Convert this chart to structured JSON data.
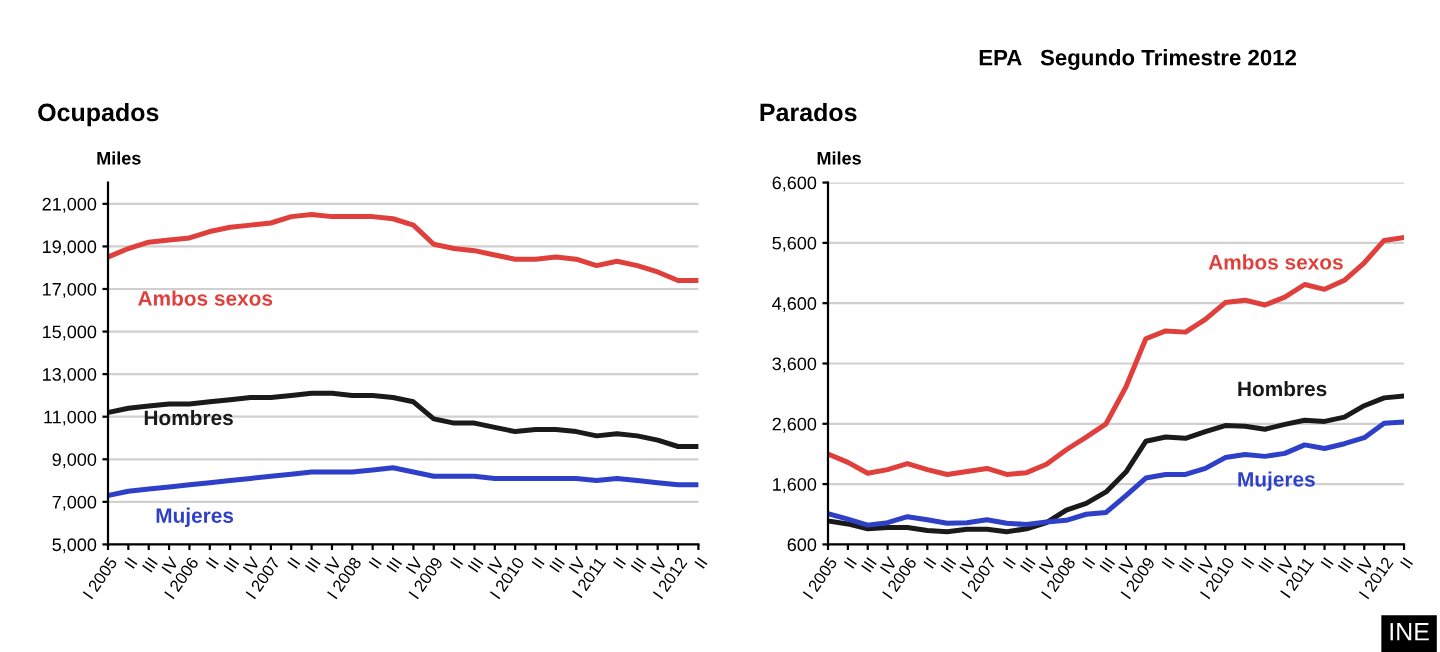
{
  "chart_data": [
    {
      "type": "line",
      "title": "Ocupados",
      "ylabel": "Miles",
      "categories": [
        "I 2005",
        "II",
        "III",
        "IV",
        "I 2006",
        "II",
        "III",
        "IV",
        "I 2007",
        "II",
        "III",
        "IV",
        "I 2008",
        "II",
        "III",
        "IV",
        "I 2009",
        "II",
        "III",
        "IV",
        "I 2010",
        "II",
        "III",
        "IV",
        "I 2011",
        "II",
        "III",
        "IV",
        "I 2012",
        "II"
      ],
      "series": [
        {
          "name": "Ambos sexos",
          "color": "#e0403c",
          "values": [
            18500,
            18900,
            19200,
            19300,
            19400,
            19700,
            19900,
            20000,
            20100,
            20400,
            20500,
            20400,
            20400,
            20400,
            20300,
            20000,
            19100,
            18900,
            18800,
            18600,
            18400,
            18400,
            18500,
            18400,
            18100,
            18300,
            18100,
            17800,
            17400,
            17400
          ]
        },
        {
          "name": "Hombres",
          "color": "#1a1a1a",
          "values": [
            11200,
            11400,
            11500,
            11600,
            11600,
            11700,
            11800,
            11900,
            11900,
            12000,
            12100,
            12100,
            12000,
            12000,
            11900,
            11700,
            10900,
            10700,
            10700,
            10500,
            10300,
            10400,
            10400,
            10300,
            10100,
            10200,
            10100,
            9900,
            9600,
            9600
          ]
        },
        {
          "name": "Mujeres",
          "color": "#2e40c8",
          "values": [
            7300,
            7500,
            7600,
            7700,
            7800,
            7900,
            8000,
            8100,
            8200,
            8300,
            8400,
            8400,
            8400,
            8500,
            8600,
            8400,
            8200,
            8200,
            8200,
            8100,
            8100,
            8100,
            8100,
            8100,
            8000,
            8100,
            8000,
            7900,
            7800,
            7800
          ]
        }
      ],
      "ylim": [
        5000,
        22000
      ],
      "yticks": [
        {
          "value": 5000,
          "label": "5,000"
        },
        {
          "value": 7000,
          "label": "7,000"
        },
        {
          "value": 9000,
          "label": "9,000"
        },
        {
          "value": 11000,
          "label": "11,000"
        },
        {
          "value": 13000,
          "label": "13,000"
        },
        {
          "value": 15000,
          "label": "15,000"
        },
        {
          "value": 17000,
          "label": "17,000"
        },
        {
          "value": 19000,
          "label": "19,000"
        },
        {
          "value": 21000,
          "label": "21,000"
        }
      ],
      "grid": "y",
      "legend": false
    },
    {
      "type": "line",
      "title": "Parados",
      "ylabel": "Miles",
      "categories": [
        "I 2005",
        "II",
        "III",
        "IV",
        "I 2006",
        "II",
        "III",
        "IV",
        "I 2007",
        "II",
        "III",
        "IV",
        "I 2008",
        "II",
        "III",
        "IV",
        "I 2009",
        "II",
        "III",
        "IV",
        "I 2010",
        "II",
        "III",
        "IV",
        "I 2011",
        "II",
        "III",
        "IV",
        "I 2012",
        "II"
      ],
      "series": [
        {
          "name": "Ambos sexos",
          "color": "#e0403c",
          "values": [
            2100,
            1960,
            1780,
            1840,
            1940,
            1840,
            1760,
            1810,
            1860,
            1760,
            1790,
            1930,
            2170,
            2380,
            2600,
            3210,
            4010,
            4140,
            4120,
            4330,
            4610,
            4650,
            4570,
            4700,
            4910,
            4830,
            4980,
            5270,
            5640,
            5690
          ]
        },
        {
          "name": "Hombres",
          "color": "#1a1a1a",
          "values": [
            990,
            940,
            860,
            880,
            880,
            830,
            810,
            850,
            850,
            810,
            860,
            960,
            1170,
            1280,
            1470,
            1800,
            2310,
            2380,
            2360,
            2470,
            2570,
            2560,
            2510,
            2590,
            2660,
            2640,
            2710,
            2900,
            3030,
            3060
          ]
        },
        {
          "name": "Mujeres",
          "color": "#2e40c8",
          "values": [
            1110,
            1020,
            920,
            960,
            1060,
            1010,
            950,
            960,
            1010,
            950,
            930,
            970,
            1000,
            1100,
            1130,
            1410,
            1700,
            1760,
            1760,
            1860,
            2040,
            2090,
            2060,
            2110,
            2250,
            2190,
            2270,
            2370,
            2610,
            2630
          ]
        }
      ],
      "ylim": [
        600,
        6600
      ],
      "yticks": [
        {
          "value": 600,
          "label": "600"
        },
        {
          "value": 1600,
          "label": "1,600"
        },
        {
          "value": 2600,
          "label": "2,600"
        },
        {
          "value": 3600,
          "label": "3,600"
        },
        {
          "value": 4600,
          "label": "4,600"
        },
        {
          "value": 5600,
          "label": "5,600"
        },
        {
          "value": 6600,
          "label": "6,600"
        }
      ],
      "grid": "y",
      "legend": false,
      "annotations": [
        "EPA   Segundo Trimestre 2012",
        "INE"
      ]
    }
  ]
}
